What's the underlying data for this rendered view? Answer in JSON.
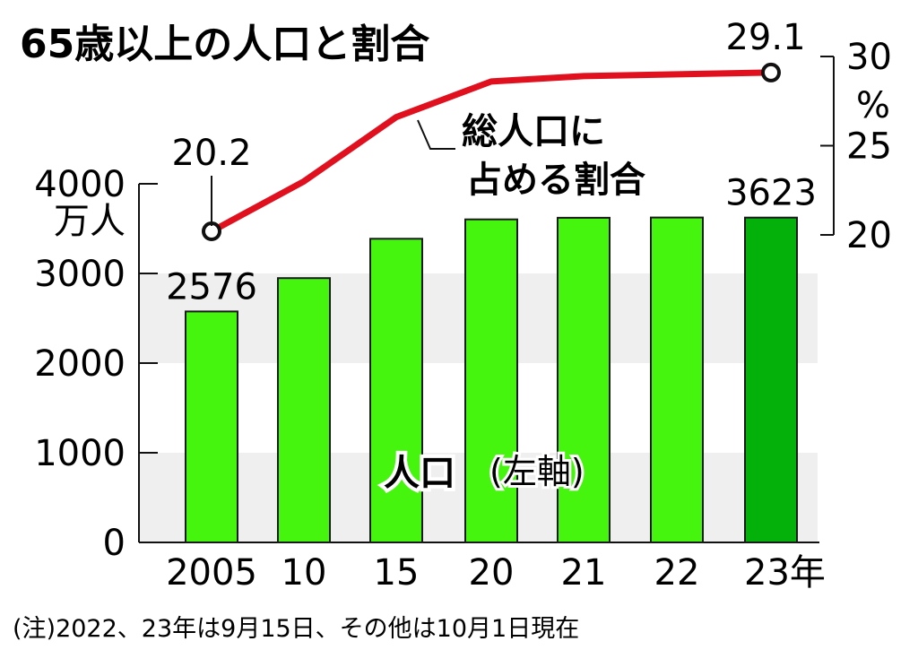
{
  "colors": {
    "bar": "#45f50d",
    "bar_highlight": "#04b10a",
    "bar_stroke": "#1a1a1a",
    "line": "#e0101e",
    "band": "#efefef",
    "text": "#111111"
  },
  "chart_data": {
    "type": "bar",
    "title": "65歳以上の人口と割合",
    "categories": [
      "2005",
      "10",
      "15",
      "20",
      "21",
      "22",
      "23年"
    ],
    "series": [
      {
        "name": "人口(左軸)",
        "axis": "left",
        "values": [
          2576,
          2948,
          3387,
          3603,
          3621,
          3624,
          3623
        ],
        "data_labels": {
          "0": "2576",
          "6": "3623"
        }
      },
      {
        "name": "総人口に占める割合",
        "axis": "right",
        "type": "line",
        "values": [
          20.2,
          23.0,
          26.6,
          28.6,
          28.9,
          29.0,
          29.1
        ],
        "data_labels": {
          "0": "20.2",
          "6": "29.1"
        }
      }
    ],
    "left_axis": {
      "ticks": [
        "0",
        "1000",
        "2000",
        "3000",
        "4000"
      ],
      "unit": "万人",
      "ylim": [
        0,
        4000
      ]
    },
    "right_axis": {
      "ticks": [
        "20",
        "25",
        "30"
      ],
      "unit": "%",
      "ylim": [
        20,
        30
      ]
    },
    "series_labels": {
      "population": "人口",
      "population_axis_note": "(左軸)",
      "ratio_line1": "総人口に",
      "ratio_line2": "占める割合"
    },
    "grid": false
  },
  "footnote": "(注)2022、23年は9月15日、その他は10月1日現在"
}
